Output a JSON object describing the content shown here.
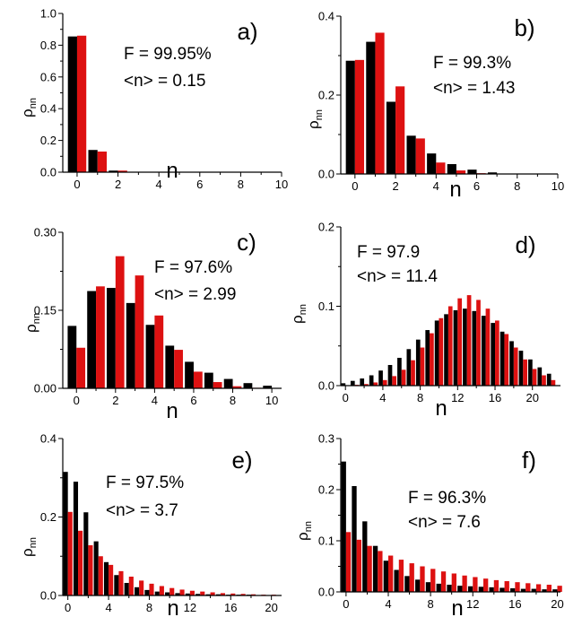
{
  "colors": {
    "series_a": "#000000",
    "series_b": "#dd1111",
    "axis": "#000000"
  },
  "chart_data": [
    {
      "panel": "a)",
      "type": "bar",
      "xlabel": "n",
      "ylabel": "ρ",
      "ylabel_sub": "nn",
      "xlim": [
        -0.7,
        10
      ],
      "ylim": [
        0,
        1.0
      ],
      "xticks": [
        0,
        2,
        4,
        6,
        8,
        10
      ],
      "xtick_labels": [
        "0",
        "2",
        "4",
        "6",
        "8",
        "10"
      ],
      "yticks": [
        0,
        0.2,
        0.4,
        0.6,
        0.8,
        1.0
      ],
      "ytick_labels": [
        "0.0",
        "0.2",
        "0.4",
        "0.6",
        "0.8",
        "1.0"
      ],
      "annotations": [
        "F = 99.95%",
        "<n> = 0.15"
      ],
      "x": [
        0,
        1,
        2,
        3
      ],
      "series": [
        {
          "values": [
            0.855,
            0.14,
            0.01,
            0.002
          ]
        },
        {
          "values": [
            0.86,
            0.13,
            0.01,
            0.002
          ]
        }
      ]
    },
    {
      "panel": "b)",
      "type": "bar",
      "xlabel": "n",
      "ylabel": "ρ",
      "ylabel_sub": "nn",
      "xlim": [
        -0.7,
        10
      ],
      "ylim": [
        0,
        0.4
      ],
      "xticks": [
        0,
        2,
        4,
        6,
        8,
        10
      ],
      "xtick_labels": [
        "0",
        "2",
        "4",
        "6",
        "8",
        "10"
      ],
      "yticks": [
        0,
        0.2,
        0.4
      ],
      "ytick_labels": [
        "0.0",
        "0.2",
        "0.4"
      ],
      "annotations": [
        "F = 99.3%",
        "<n> = 1.43"
      ],
      "x": [
        0,
        1,
        2,
        3,
        4,
        5,
        6,
        7,
        8
      ],
      "series": [
        {
          "values": [
            0.287,
            0.335,
            0.183,
            0.097,
            0.052,
            0.025,
            0.011,
            0.004,
            0.001
          ]
        },
        {
          "values": [
            0.289,
            0.358,
            0.222,
            0.09,
            0.029,
            0.009,
            0.002,
            0.001,
            0.0
          ]
        }
      ]
    },
    {
      "panel": "c)",
      "type": "bar",
      "xlabel": "n",
      "ylabel": "ρ",
      "ylabel_sub": "nn",
      "xlim": [
        -0.7,
        10.5
      ],
      "ylim": [
        0,
        0.3
      ],
      "xticks": [
        0,
        2,
        4,
        6,
        8,
        10
      ],
      "xtick_labels": [
        "0",
        "2",
        "4",
        "6",
        "8",
        "10"
      ],
      "yticks": [
        0,
        0.15,
        0.3
      ],
      "ytick_labels": [
        "0.00",
        "0.15",
        "0.30"
      ],
      "annotations": [
        "F = 97.6%",
        "<n> = 2.99"
      ],
      "x": [
        0,
        1,
        2,
        3,
        4,
        5,
        6,
        7,
        8,
        9,
        10
      ],
      "series": [
        {
          "values": [
            0.12,
            0.187,
            0.193,
            0.164,
            0.122,
            0.082,
            0.051,
            0.03,
            0.018,
            0.01,
            0.005
          ]
        },
        {
          "values": [
            0.078,
            0.196,
            0.254,
            0.217,
            0.14,
            0.074,
            0.032,
            0.012,
            0.004,
            0.001,
            0.0
          ]
        }
      ]
    },
    {
      "panel": "d)",
      "type": "bar",
      "xlabel": "n",
      "ylabel": "ρ",
      "ylabel_sub": "nn",
      "xlim": [
        -0.5,
        23
      ],
      "ylim": [
        0,
        0.2
      ],
      "xticks": [
        0,
        4,
        8,
        12,
        16,
        20
      ],
      "xtick_labels": [
        "0",
        "4",
        "8",
        "12",
        "16",
        "20"
      ],
      "yticks": [
        0,
        0.1,
        0.2
      ],
      "ytick_labels": [
        "0.0",
        "0.1",
        "0.2"
      ],
      "annotations": [
        "F = 97.9",
        "<n> = 11.4"
      ],
      "x": [
        0,
        1,
        2,
        3,
        4,
        5,
        6,
        7,
        8,
        9,
        10,
        11,
        12,
        13,
        14,
        15,
        16,
        17,
        18,
        19,
        20,
        21,
        22
      ],
      "series": [
        {
          "values": [
            0.003,
            0.006,
            0.009,
            0.013,
            0.019,
            0.026,
            0.035,
            0.046,
            0.058,
            0.07,
            0.082,
            0.09,
            0.095,
            0.097,
            0.094,
            0.088,
            0.079,
            0.068,
            0.056,
            0.044,
            0.033,
            0.023,
            0.015
          ]
        },
        {
          "values": [
            0.0,
            0.001,
            0.002,
            0.004,
            0.007,
            0.012,
            0.02,
            0.032,
            0.048,
            0.066,
            0.085,
            0.1,
            0.11,
            0.114,
            0.108,
            0.097,
            0.082,
            0.065,
            0.048,
            0.033,
            0.021,
            0.013,
            0.007
          ]
        }
      ]
    },
    {
      "panel": "e)",
      "type": "bar",
      "xlabel": "n",
      "ylabel": "ρ",
      "ylabel_sub": "nn",
      "xlim": [
        -0.5,
        21
      ],
      "ylim": [
        0,
        0.4
      ],
      "xticks": [
        0,
        4,
        8,
        12,
        16,
        20
      ],
      "xtick_labels": [
        "0",
        "4",
        "8",
        "12",
        "16",
        "20"
      ],
      "yticks": [
        0,
        0.2,
        0.4
      ],
      "ytick_labels": [
        "0.0",
        "0.2",
        "0.4"
      ],
      "annotations": [
        "F = 97.5%",
        "<n> = 3.7"
      ],
      "x": [
        0,
        1,
        2,
        3,
        4,
        5,
        6,
        7,
        8,
        9,
        10,
        11,
        12,
        13,
        14,
        15,
        16,
        17,
        18,
        19,
        20
      ],
      "series": [
        {
          "values": [
            0.315,
            0.29,
            0.212,
            0.138,
            0.085,
            0.052,
            0.032,
            0.021,
            0.014,
            0.01,
            0.008,
            0.006,
            0.005,
            0.004,
            0.003,
            0.003,
            0.002,
            0.002,
            0.002,
            0.001,
            0.001
          ]
        },
        {
          "values": [
            0.213,
            0.165,
            0.128,
            0.1,
            0.078,
            0.062,
            0.048,
            0.038,
            0.03,
            0.024,
            0.019,
            0.015,
            0.012,
            0.01,
            0.008,
            0.006,
            0.005,
            0.004,
            0.003,
            0.002,
            0.002
          ]
        }
      ]
    },
    {
      "panel": "f)",
      "type": "bar",
      "xlabel": "n",
      "ylabel": "ρ",
      "ylabel_sub": "nn",
      "xlim": [
        -0.5,
        20.3
      ],
      "ylim": [
        0,
        0.3
      ],
      "xticks": [
        0,
        4,
        8,
        12,
        16,
        20
      ],
      "xtick_labels": [
        "0",
        "4",
        "8",
        "12",
        "16",
        "20"
      ],
      "yticks": [
        0,
        0.1,
        0.2,
        0.3
      ],
      "ytick_labels": [
        "0.0",
        "0.1",
        "0.2",
        "0.3"
      ],
      "annotations": [
        "F = 96.3%",
        "<n> = 7.6"
      ],
      "x": [
        0,
        1,
        2,
        3,
        4,
        5,
        6,
        7,
        8,
        9,
        10,
        11,
        12,
        13,
        14,
        15,
        16,
        17,
        18,
        19,
        20
      ],
      "series": [
        {
          "values": [
            0.255,
            0.207,
            0.138,
            0.09,
            0.061,
            0.043,
            0.031,
            0.024,
            0.019,
            0.016,
            0.014,
            0.012,
            0.011,
            0.01,
            0.009,
            0.008,
            0.007,
            0.006,
            0.006,
            0.005,
            0.005
          ]
        },
        {
          "values": [
            0.117,
            0.102,
            0.09,
            0.08,
            0.071,
            0.063,
            0.056,
            0.05,
            0.045,
            0.04,
            0.036,
            0.032,
            0.029,
            0.026,
            0.023,
            0.021,
            0.019,
            0.017,
            0.015,
            0.014,
            0.012
          ]
        }
      ]
    }
  ]
}
